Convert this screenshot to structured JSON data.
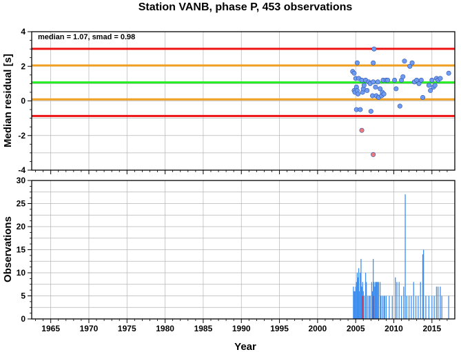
{
  "chart_data": [
    {
      "type": "scatter",
      "title": "Station VANB, phase P, 453 observations",
      "ylabel": "Median residual [s]",
      "annotation": "median = 1.07, smad = 0.98",
      "xlim": [
        1962.5,
        2018
      ],
      "ylim": [
        -4,
        4
      ],
      "yticks": [
        -4,
        -2,
        0,
        2,
        4
      ],
      "grid": true,
      "reference_lines": [
        {
          "y": 3.01,
          "color": "#ee1111"
        },
        {
          "y": 2.05,
          "color": "#f0a020"
        },
        {
          "y": 1.07,
          "color": "#22ee22"
        },
        {
          "y": 0.09,
          "color": "#f0a020"
        },
        {
          "y": -0.87,
          "color": "#ee1111"
        }
      ],
      "series": [
        {
          "color": "#6f9cf0",
          "points": [
            [
              2004.6,
              1.7
            ],
            [
              2004.8,
              1.6
            ],
            [
              2004.8,
              0.6
            ],
            [
              2004.9,
              0.5
            ],
            [
              2005.0,
              1.3
            ],
            [
              2005.1,
              0.8
            ],
            [
              2005.2,
              2.2
            ],
            [
              2005.2,
              0.6
            ],
            [
              2005.3,
              0.4
            ],
            [
              2005.4,
              1.3
            ],
            [
              2005.1,
              -0.5
            ],
            [
              2005.6,
              -0.5
            ],
            [
              2005.8,
              1.2
            ],
            [
              2005.9,
              0.5
            ],
            [
              2006.0,
              0.7
            ],
            [
              2006.1,
              0.9
            ],
            [
              2006.3,
              1.2
            ],
            [
              2006.5,
              0.6
            ],
            [
              2006.7,
              1.1
            ],
            [
              2006.9,
              1.0
            ],
            [
              2007.0,
              -0.6
            ],
            [
              2007.2,
              0.3
            ],
            [
              2007.3,
              2.2
            ],
            [
              2007.4,
              3.0
            ],
            [
              2007.3,
              1.1
            ],
            [
              2007.6,
              0.8
            ],
            [
              2007.7,
              0.3
            ],
            [
              2007.9,
              1.1
            ],
            [
              2008.0,
              0.2
            ],
            [
              2008.2,
              0.7
            ],
            [
              2008.4,
              0.3
            ],
            [
              2008.5,
              0.5
            ],
            [
              2008.6,
              1.2
            ],
            [
              2008.7,
              0.4
            ],
            [
              2009.0,
              1.2
            ],
            [
              2009.2,
              1.2
            ],
            [
              2010.1,
              1.2
            ],
            [
              2010.3,
              0.7
            ],
            [
              2010.8,
              -0.3
            ],
            [
              2011.0,
              1.2
            ],
            [
              2011.2,
              1.4
            ],
            [
              2011.4,
              2.3
            ],
            [
              2012.1,
              2.0
            ],
            [
              2012.4,
              2.2
            ],
            [
              2012.7,
              1.1
            ],
            [
              2013.0,
              1.2
            ],
            [
              2013.3,
              1.0
            ],
            [
              2013.6,
              1.2
            ],
            [
              2013.8,
              0.2
            ],
            [
              2014.6,
              0.9
            ],
            [
              2014.8,
              0.6
            ],
            [
              2015.0,
              1.2
            ],
            [
              2015.2,
              0.8
            ],
            [
              2015.4,
              0.9
            ],
            [
              2015.6,
              1.3
            ],
            [
              2015.8,
              1.2
            ],
            [
              2016.1,
              1.3
            ],
            [
              2017.2,
              1.6
            ]
          ]
        },
        {
          "color": "#f07a7a",
          "points": [
            [
              2005.8,
              -1.7
            ],
            [
              2007.3,
              -3.1
            ]
          ]
        }
      ]
    },
    {
      "type": "bar",
      "xlabel": "Year",
      "ylabel": "Observations",
      "xlim": [
        1962.5,
        2018
      ],
      "ylim": [
        0,
        30
      ],
      "xticks": [
        1965,
        1970,
        1975,
        1980,
        1985,
        1990,
        1995,
        2000,
        2005,
        2010,
        2015
      ],
      "yticks": [
        0,
        5,
        10,
        15,
        20,
        25,
        30
      ],
      "grid": true,
      "series": [
        {
          "color": "#3f8ff0",
          "bars": [
            [
              2004.7,
              7
            ],
            [
              2004.8,
              6
            ],
            [
              2004.9,
              6
            ],
            [
              2005.0,
              7
            ],
            [
              2005.1,
              8
            ],
            [
              2005.2,
              10
            ],
            [
              2005.3,
              9
            ],
            [
              2005.4,
              11
            ],
            [
              2005.5,
              6
            ],
            [
              2005.6,
              10
            ],
            [
              2005.7,
              13
            ],
            [
              2005.8,
              7
            ],
            [
              2005.9,
              8
            ],
            [
              2006.0,
              6
            ],
            [
              2006.1,
              5
            ],
            [
              2006.3,
              10
            ],
            [
              2006.4,
              8
            ],
            [
              2006.6,
              5
            ],
            [
              2006.8,
              5
            ],
            [
              2006.9,
              5
            ],
            [
              2007.1,
              8
            ],
            [
              2007.2,
              6
            ],
            [
              2007.3,
              13
            ],
            [
              2007.4,
              8
            ],
            [
              2007.5,
              7
            ],
            [
              2007.6,
              8
            ],
            [
              2007.7,
              8
            ],
            [
              2007.8,
              8
            ],
            [
              2007.9,
              8
            ],
            [
              2008.0,
              8
            ],
            [
              2008.2,
              8
            ],
            [
              2008.3,
              5
            ],
            [
              2008.5,
              5
            ],
            [
              2008.7,
              5
            ],
            [
              2008.8,
              5
            ],
            [
              2009.0,
              5
            ],
            [
              2009.4,
              5
            ],
            [
              2009.8,
              5
            ],
            [
              2010.2,
              9
            ],
            [
              2010.4,
              8
            ],
            [
              2010.7,
              8
            ],
            [
              2011.0,
              5
            ],
            [
              2011.3,
              7
            ],
            [
              2011.5,
              27
            ],
            [
              2011.7,
              5
            ],
            [
              2012.0,
              5
            ],
            [
              2012.3,
              5
            ],
            [
              2012.6,
              8
            ],
            [
              2012.9,
              5
            ],
            [
              2013.2,
              5
            ],
            [
              2013.5,
              8
            ],
            [
              2013.8,
              14
            ],
            [
              2013.9,
              15
            ],
            [
              2014.2,
              5
            ],
            [
              2014.6,
              5
            ],
            [
              2015.0,
              5
            ],
            [
              2015.3,
              5
            ],
            [
              2015.6,
              7
            ],
            [
              2015.8,
              7
            ],
            [
              2016.1,
              7
            ],
            [
              2016.3,
              5
            ],
            [
              2017.2,
              5
            ]
          ]
        },
        {
          "color": "#ee2222",
          "bars": [
            [
              2005.9,
              5
            ],
            [
              2007.3,
              5
            ]
          ]
        }
      ]
    }
  ]
}
